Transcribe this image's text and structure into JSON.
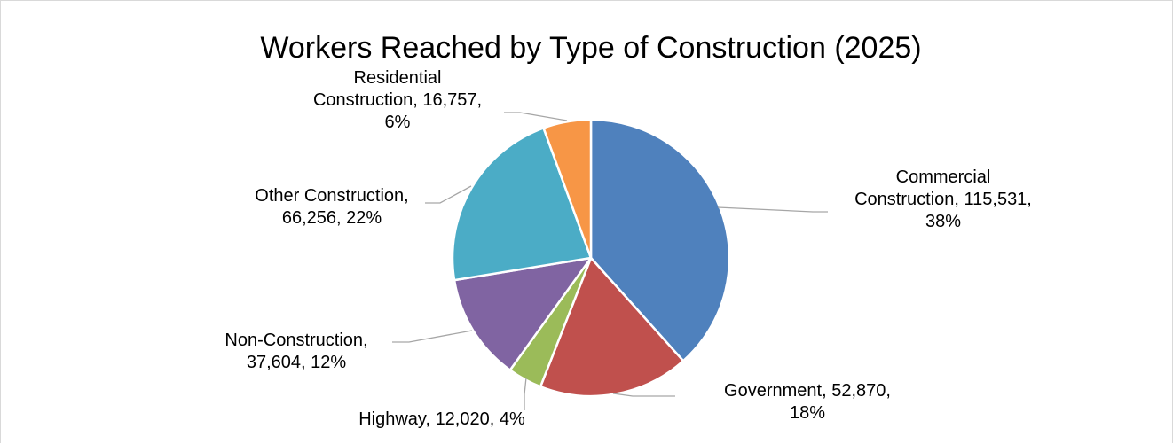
{
  "chart_data": {
    "type": "pie",
    "title": "Workers Reached by Type of Construction (2025)",
    "start_angle": "12 o'clock, clockwise",
    "legend": "none (data labels on leader lines)",
    "slices": [
      {
        "name": "Commercial Construction",
        "value": 115531,
        "percent": "38%",
        "color": "#4f81bd",
        "label_lines": [
          "Commercial",
          "Construction, 115,531,",
          "38%"
        ]
      },
      {
        "name": "Government",
        "value": 52870,
        "percent": "18%",
        "color": "#c0504d",
        "label_lines": [
          "Government, 52,870,",
          "18%"
        ]
      },
      {
        "name": "Highway",
        "value": 12020,
        "percent": "4%",
        "color": "#9bbb59",
        "label_lines": [
          "Highway, 12,020, 4%"
        ]
      },
      {
        "name": "Non-Construction",
        "value": 37604,
        "percent": "12%",
        "color": "#8064a2",
        "label_lines": [
          "Non-Construction,",
          "37,604, 12%"
        ]
      },
      {
        "name": "Other Construction",
        "value": 66256,
        "percent": "22%",
        "color": "#4bacc6",
        "label_lines": [
          "Other Construction,",
          "66,256, 22%"
        ]
      },
      {
        "name": "Residential Construction",
        "value": 16757,
        "percent": "6%",
        "color": "#f79646",
        "label_lines": [
          "Residential",
          "Construction, 16,757,",
          "6%"
        ]
      }
    ]
  }
}
